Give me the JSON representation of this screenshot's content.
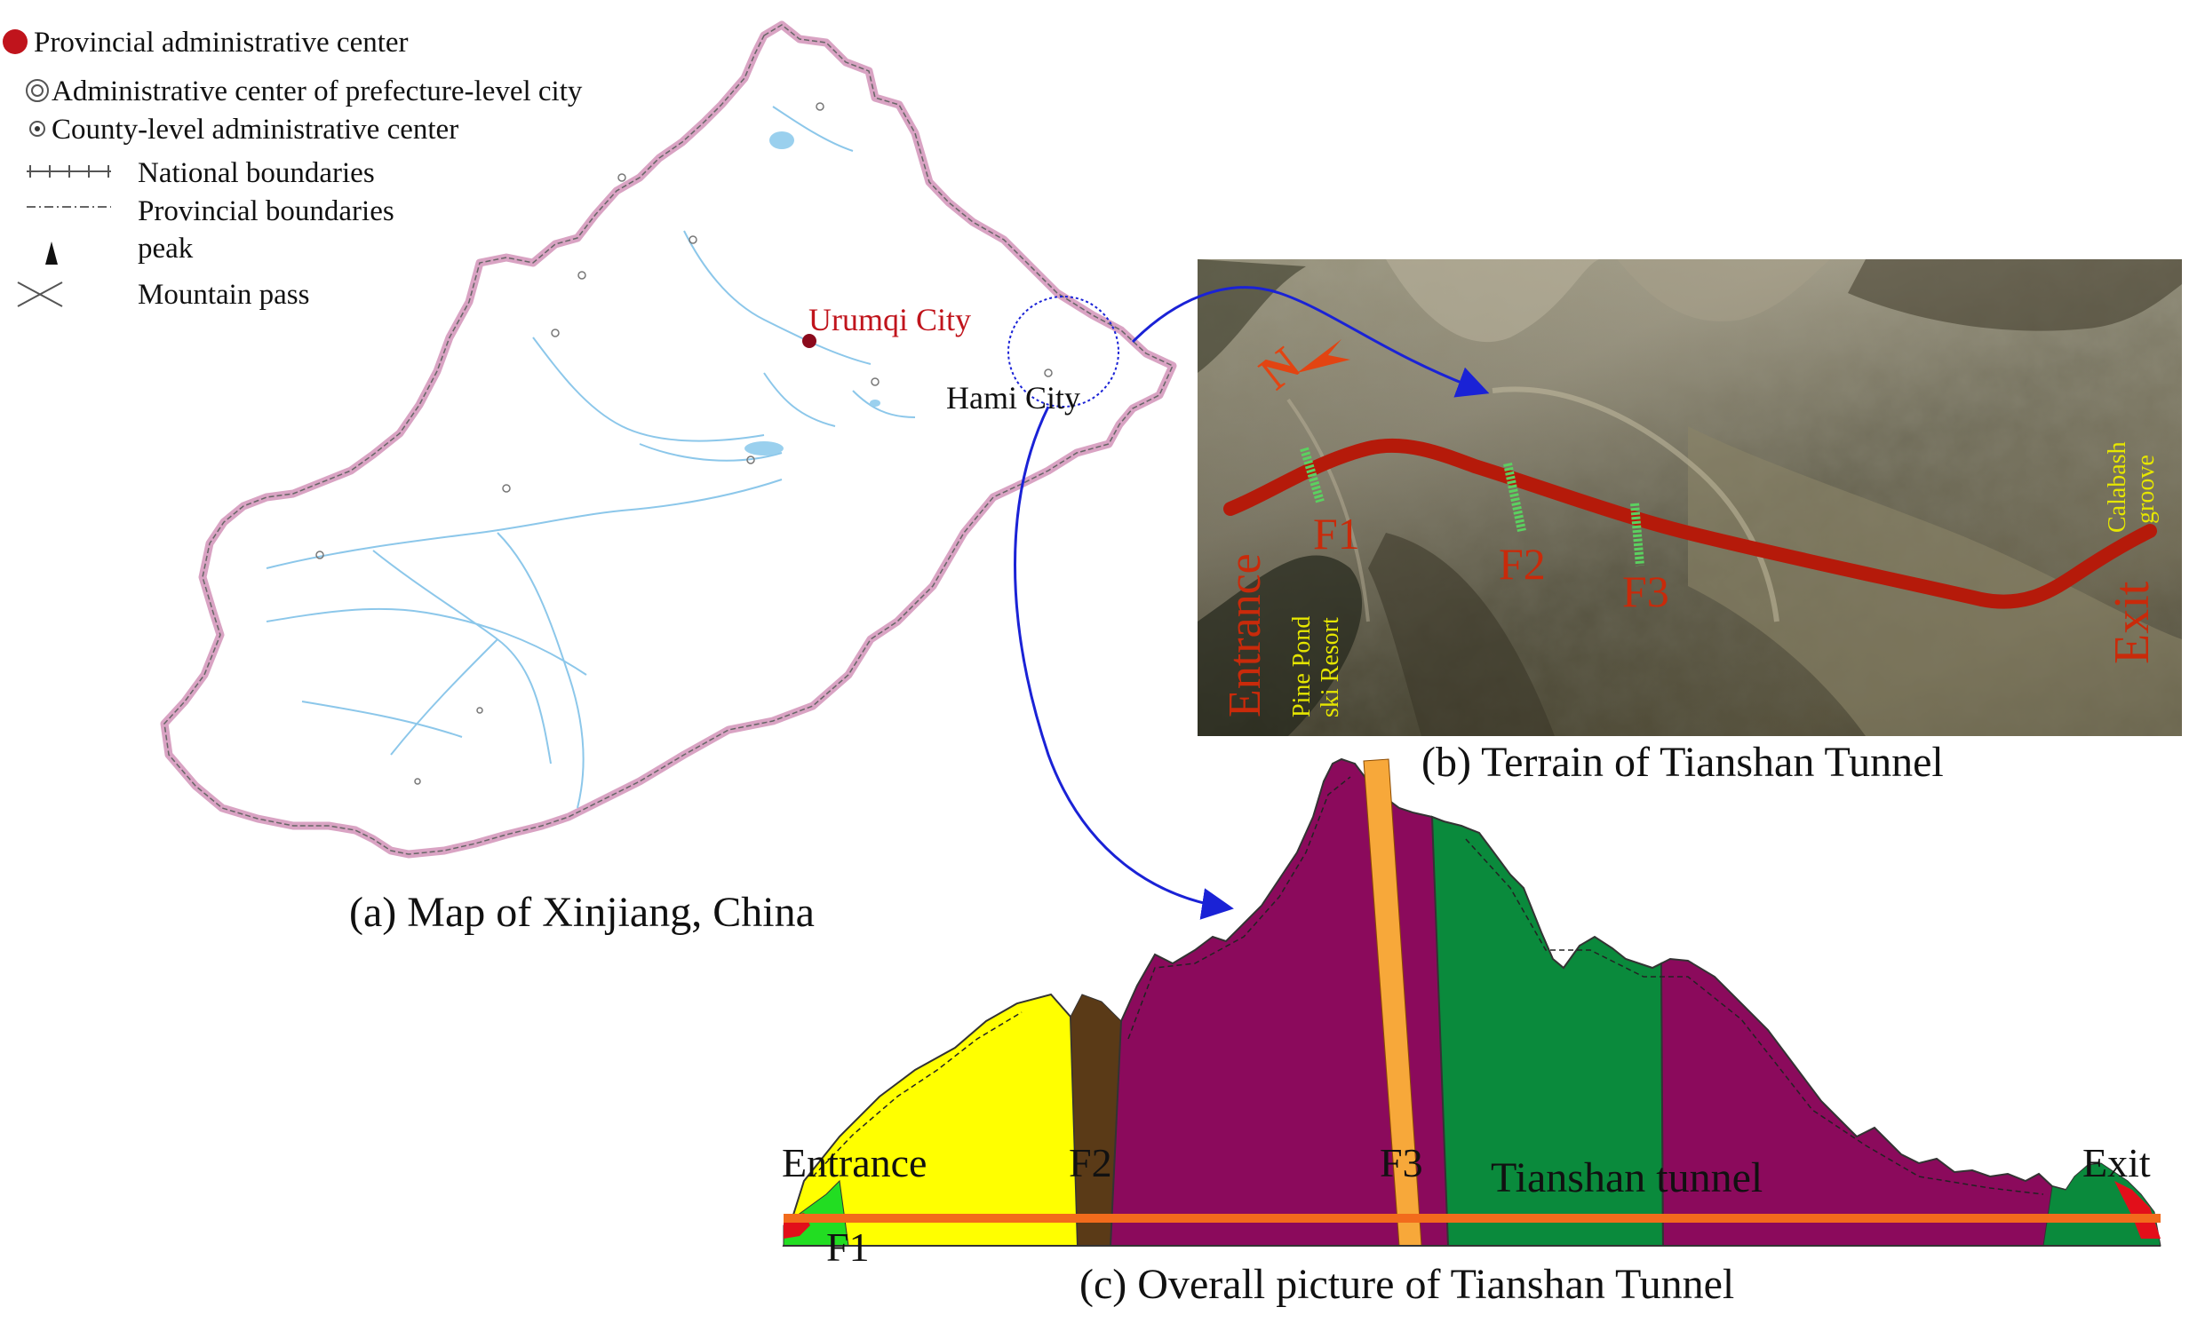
{
  "legend": {
    "items": [
      {
        "icon": "red-dot-icon",
        "label": "Provincial administrative center"
      },
      {
        "icon": "double-circle-icon",
        "label": "Administrative center of prefecture-level city"
      },
      {
        "icon": "dot-circle-icon",
        "label": "County-level administrative center"
      },
      {
        "icon": "national-boundary-line-icon",
        "label": "National boundaries"
      },
      {
        "icon": "provincial-boundary-line-icon",
        "label": "Provincial boundaries"
      },
      {
        "icon": "peak-triangle-icon",
        "label": "peak"
      },
      {
        "icon": "cross-icon",
        "label": "Mountain pass"
      }
    ]
  },
  "panel_a": {
    "caption": "(a) Map of Xinjiang, China",
    "city_urumqi": "Urumqi City",
    "city_hami": "Hami City"
  },
  "panel_b": {
    "caption": "(b) Terrain of Tianshan Tunnel",
    "labels": {
      "entrance": "Entrance",
      "exit": "Exit",
      "f1": "F1",
      "f2": "F2",
      "f3": "F3",
      "pine_pond_1": "Pine Pond",
      "pine_pond_2": "ski Resort",
      "calabash_1": "Calabash",
      "calabash_2": "groove",
      "north": "N"
    }
  },
  "panel_c": {
    "caption": "(c) Overall picture of Tianshan Tunnel",
    "labels": {
      "entrance": "Entrance",
      "exit": "Exit",
      "f1": "F1",
      "f2": "F2",
      "f3": "F3",
      "tunnel": "Tianshan tunnel"
    }
  },
  "colors": {
    "red": "#c0141c",
    "blue_arrow": "#1a22d6",
    "tunnel_route": "#b51a0a",
    "yellow_zone": "#ffff00",
    "brown_zone": "#5a3a17",
    "magenta_zone": "#8b0a5c",
    "green_zone": "#0a8a3c",
    "fault_orange": "#f7a83a",
    "tunnel_line": "#f26b1c",
    "label_yellow": "#e6e600",
    "fault_green": "#5bd160"
  }
}
